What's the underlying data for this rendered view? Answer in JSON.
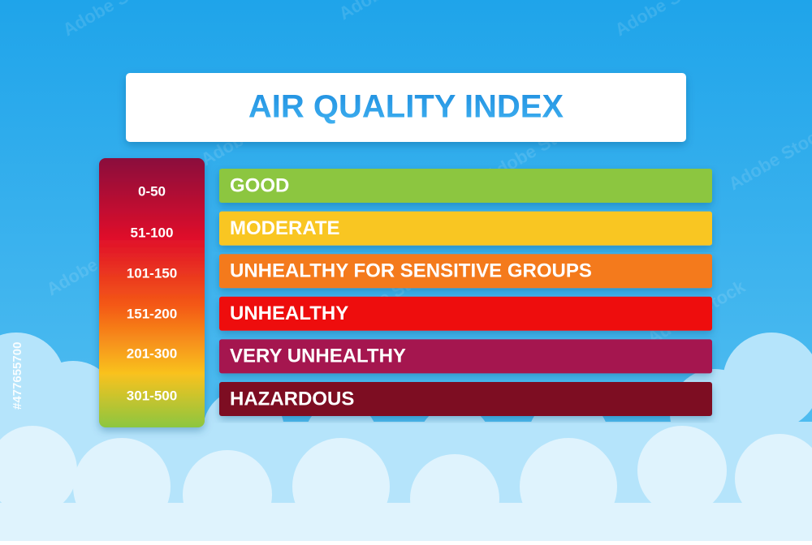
{
  "header": {
    "title": "AIR QUALITY INDEX"
  },
  "levels": [
    {
      "range": "0-50",
      "label": "GOOD",
      "color": "#8cc63f"
    },
    {
      "range": "51-100",
      "label": "MODERATE",
      "color": "#f9c623"
    },
    {
      "range": "101-150",
      "label": "UNHEALTHY FOR SENSITIVE GROUPS",
      "color": "#f47a1f"
    },
    {
      "range": "151-200",
      "label": "UNHEALTHY",
      "color": "#ee1111"
    },
    {
      "range": "201-300",
      "label": "VERY UNHEALTHY",
      "color": "#a5124f"
    },
    {
      "range": "301-500",
      "label": "HAZARDOUS",
      "color": "#7d0a22"
    }
  ],
  "watermark": {
    "brand": "Adobe Stock",
    "id": "#477655700"
  }
}
